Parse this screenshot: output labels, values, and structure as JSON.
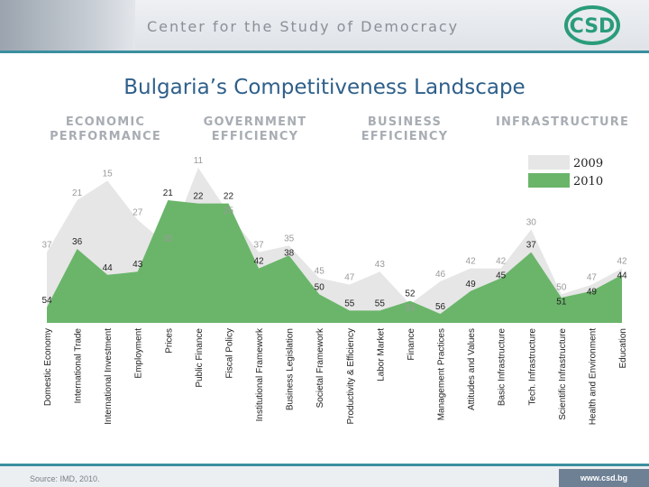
{
  "header": {
    "title": "Center for the Study of Democracy",
    "logo_text": "CSD"
  },
  "slide_title": "Bulgaria’s Competitiveness Landscape",
  "categories_header": [
    {
      "line1": "ECONOMIC",
      "line2": "PERFORMANCE"
    },
    {
      "line1": "GOVERNMENT",
      "line2": "EFFICIENCY"
    },
    {
      "line1": "BUSINESS",
      "line2": "EFFICIENCY"
    },
    {
      "line1": "INFRASTRUCTURE",
      "line2": ""
    }
  ],
  "footer": {
    "source": "Source: IMD, 2010.",
    "url": "www.csd.bg"
  },
  "colors": {
    "series_2009": "#e6e6e6",
    "series_2010": "#6ab56a",
    "title": "#2e5f8a",
    "accent": "#3a8fa0"
  },
  "chart_data": {
    "type": "area",
    "categories": [
      "Domestic Economy",
      "International Trade",
      "International Investment",
      "Employment",
      "Prices",
      "Public Finance",
      "Fiscal Policy",
      "Institutional Framework",
      "Business Legislation",
      "Societal Framework",
      "Productivity & Efficiency",
      "Labor Market",
      "Finance",
      "Management Practices",
      "Attitudes and Values",
      "Basic Infrastructure",
      "Tech. Infrastructure",
      "Scientific Infrastructure",
      "Health and Environment",
      "Education"
    ],
    "series": [
      {
        "name": "2009",
        "values": [
          37,
          21,
          15,
          27,
          35,
          11,
          25,
          37,
          35,
          45,
          47,
          43,
          53,
          46,
          42,
          42,
          30,
          50,
          47,
          42
        ]
      },
      {
        "name": "2010",
        "values": [
          54,
          36,
          44,
          43,
          21,
          22,
          22,
          42,
          38,
          50,
          55,
          55,
          52,
          56,
          49,
          45,
          37,
          51,
          49,
          44
        ]
      }
    ],
    "y_inverted": true,
    "legend_placement": "top-right"
  }
}
